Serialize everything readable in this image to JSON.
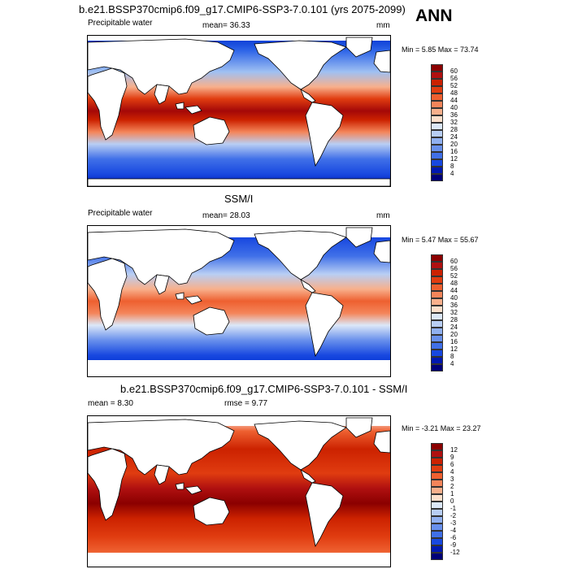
{
  "title_top": "b.e21.BSSP370cmip6.f09_g17.CMIP6-SSP3-7.0.101 (yrs 2075-2099)",
  "season": "ANN",
  "panels": [
    {
      "variable": "Precipitable water",
      "mean_text": "mean=  36.33",
      "units": "mm",
      "minmax": "Min =   5.85 Max =  73.74",
      "colorbar_labels": [
        "60",
        "56",
        "52",
        "48",
        "44",
        "40",
        "36",
        "32",
        "28",
        "24",
        "20",
        "16",
        "12",
        "8",
        "4"
      ]
    },
    {
      "heading": "SSM/I",
      "variable": "Precipitable water",
      "mean_text": "mean=  28.03",
      "units": "mm",
      "minmax": "Min =   5.47 Max =  55.67",
      "colorbar_labels": [
        "60",
        "56",
        "52",
        "48",
        "44",
        "40",
        "36",
        "32",
        "28",
        "24",
        "20",
        "16",
        "12",
        "8",
        "4"
      ]
    },
    {
      "heading": "b.e21.BSSP370cmip6.f09_g17.CMIP6-SSP3-7.0.101 - SSM/I",
      "mean_text": "mean =   8.30",
      "rmse_text": "rmse =   9.77",
      "minmax": "Min =  -3.21 Max =  23.27",
      "colorbar_labels": [
        "12",
        "9",
        "6",
        "4",
        "3",
        "2",
        "1",
        "0",
        "-1",
        "-2",
        "-3",
        "-4",
        "-6",
        "-9",
        "-12"
      ]
    }
  ],
  "colors": {
    "abs_scale": [
      "#8b0000",
      "#b01010",
      "#cc2200",
      "#e03c10",
      "#ee6030",
      "#f4855a",
      "#f8b08c",
      "#fde0cc",
      "#dce8f8",
      "#b8cef4",
      "#90b0f0",
      "#6890ec",
      "#4070e8",
      "#1848e0",
      "#0018b0",
      "#000078"
    ],
    "diff_scale": [
      "#8b0000",
      "#b01010",
      "#cc2200",
      "#e03c10",
      "#ee6030",
      "#f4855a",
      "#f8b08c",
      "#fde0cc",
      "#dce8f8",
      "#b8cef4",
      "#90b0f0",
      "#6890ec",
      "#4070e8",
      "#1848e0",
      "#0018b0",
      "#000078"
    ]
  }
}
